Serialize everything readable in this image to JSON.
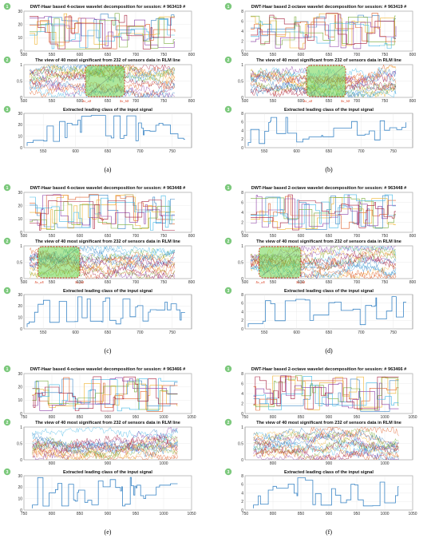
{
  "axis_tick_sets": {
    "top_ab": [
      500,
      550,
      600,
      650,
      700,
      750,
      800
    ],
    "bottom_ab": [
      550,
      600,
      650,
      700,
      750
    ],
    "cd": [
      500,
      550,
      600,
      650,
      700,
      750,
      800
    ],
    "cd_bottom": [
      550,
      600,
      650,
      700,
      750
    ],
    "ef": [
      750,
      800,
      850,
      900,
      950,
      1000,
      1050
    ]
  },
  "colors": {
    "grid": "#e6e6e6",
    "axis": "#4d4d4d",
    "signal": "#3b86c6",
    "highlight_fill": "#6cd44a",
    "highlight_border": "#cc3b1f",
    "badge": "#7dc97d",
    "marker_label": "#d9462a",
    "series": [
      "#3b86c6",
      "#e0622c",
      "#f0b431",
      "#8c3fa6",
      "#7aad3c",
      "#46b9e6",
      "#a8203f"
    ]
  },
  "chart_data": [
    {
      "panel": "a",
      "caption": "(a)",
      "type": "line",
      "subplots": [
        {
          "badge": "1",
          "title": "DWT-Haar based 4-octave wavelet decomposition for session: # 963419 #",
          "xlim": [
            500,
            800
          ],
          "ylim": [
            0,
            30
          ],
          "yticks": [
            0,
            10,
            20,
            30
          ],
          "xticks": [
            500,
            550,
            600,
            650,
            700,
            750,
            800
          ],
          "xdata": [
            510,
            770
          ]
        },
        {
          "badge": "2",
          "title": "The view of 40 most significant from 232 of sensors data in RLM line",
          "xlim": [
            500,
            800
          ],
          "ylim": [
            0,
            1
          ],
          "yticks": [
            0,
            0.5,
            1
          ],
          "xticks": [
            500,
            550,
            600,
            650,
            700,
            750,
            800
          ],
          "xdata": [
            510,
            770
          ],
          "highlight": {
            "x_from": 610,
            "x_to": 680
          },
          "markers": [
            "$x_a$",
            "$x_b$"
          ]
        },
        {
          "badge": "3",
          "title": "Extracted leading class of the input signal",
          "xlim": [
            520,
            780
          ],
          "ylim": [
            0,
            30
          ],
          "yticks": [
            0,
            10,
            20,
            30
          ],
          "xticks": [
            550,
            600,
            650,
            700,
            750
          ],
          "xdata": [
            525,
            770
          ]
        }
      ]
    },
    {
      "panel": "b",
      "caption": "(b)",
      "type": "line",
      "subplots": [
        {
          "badge": "1",
          "title": "DWT-Haar based 2-octave wavelet decomposition for session: # 963419 #",
          "xlim": [
            500,
            800
          ],
          "ylim": [
            0,
            8
          ],
          "yticks": [
            0,
            2,
            4,
            6,
            8
          ],
          "xticks": [
            500,
            550,
            600,
            650,
            700,
            750,
            800
          ],
          "xdata": [
            510,
            770
          ]
        },
        {
          "badge": "2",
          "title": "The view of 40 most significant from 232 of sensors data in RLM line",
          "xlim": [
            500,
            800
          ],
          "ylim": [
            0,
            1
          ],
          "yticks": [
            0,
            0.5,
            1
          ],
          "xticks": [
            500,
            550,
            600,
            650,
            700,
            750,
            800
          ],
          "xdata": [
            510,
            770
          ],
          "highlight": {
            "x_from": 610,
            "x_to": 680
          },
          "markers": [
            "$x_a$",
            "$x_b$"
          ]
        },
        {
          "badge": "3",
          "title": "Extracted leading class of the input signal",
          "xlim": [
            520,
            780
          ],
          "ylim": [
            0,
            8
          ],
          "yticks": [
            0,
            2,
            4,
            6,
            8
          ],
          "xticks": [
            550,
            600,
            650,
            700,
            750
          ],
          "xdata": [
            525,
            770
          ]
        }
      ]
    },
    {
      "panel": "c",
      "caption": "(c)",
      "type": "line",
      "subplots": [
        {
          "badge": "1",
          "title": "DWT-Haar based 4-octave wavelet decomposition for session: # 963448 #",
          "xlim": [
            500,
            800
          ],
          "ylim": [
            0,
            30
          ],
          "yticks": [
            0,
            10,
            20,
            30
          ],
          "xticks": [
            500,
            550,
            600,
            650,
            700,
            750,
            800
          ],
          "xdata": [
            510,
            770
          ]
        },
        {
          "badge": "2",
          "title": "The view of 40 most significant from 232 of sensors data in RLM line",
          "xlim": [
            500,
            800
          ],
          "ylim": [
            0,
            1
          ],
          "yticks": [
            0,
            0.5,
            1
          ],
          "xticks": [
            500,
            550,
            600,
            650,
            700,
            750,
            800
          ],
          "xdata": [
            510,
            770
          ],
          "highlight": {
            "x_from": 525,
            "x_to": 600
          },
          "markers": [
            "$x_a$",
            "$x_b$"
          ]
        },
        {
          "badge": "3",
          "title": "Extracted leading class of the input signal",
          "xlim": [
            520,
            780
          ],
          "ylim": [
            0,
            30
          ],
          "yticks": [
            0,
            10,
            20,
            30
          ],
          "xticks": [
            550,
            600,
            650,
            700,
            750
          ],
          "xdata": [
            525,
            770
          ]
        }
      ]
    },
    {
      "panel": "d",
      "caption": "(d)",
      "type": "line",
      "subplots": [
        {
          "badge": "1",
          "title": "DWT-Haar based 2-octave wavelet decomposition for session: # 963448 #",
          "xlim": [
            500,
            800
          ],
          "ylim": [
            0,
            8
          ],
          "yticks": [
            0,
            2,
            4,
            6,
            8
          ],
          "xticks": [
            500,
            550,
            600,
            650,
            700,
            750,
            800
          ],
          "xdata": [
            510,
            770
          ]
        },
        {
          "badge": "2",
          "title": "The view of 40 most significant from 232 of sensors data in RLM line",
          "xlim": [
            500,
            800
          ],
          "ylim": [
            0,
            1
          ],
          "yticks": [
            0,
            0.5,
            1
          ],
          "xticks": [
            500,
            550,
            600,
            650,
            700,
            750,
            800
          ],
          "xdata": [
            510,
            770
          ],
          "highlight": {
            "x_from": 525,
            "x_to": 600
          },
          "markers": [
            "$x_a$",
            "$x_b$"
          ]
        },
        {
          "badge": "3",
          "title": "Extracted leading class of the input signal",
          "xlim": [
            520,
            780
          ],
          "ylim": [
            0,
            8
          ],
          "yticks": [
            0,
            2,
            4,
            6,
            8
          ],
          "xticks": [
            550,
            600,
            650,
            700,
            750
          ],
          "xdata": [
            525,
            770
          ]
        }
      ]
    },
    {
      "panel": "e",
      "caption": "(e)",
      "type": "line",
      "subplots": [
        {
          "badge": "1",
          "title": "DWT-Haar based 4-octave wavelet decomposition for session: # 963466 #",
          "xlim": [
            750,
            1050
          ],
          "ylim": [
            0,
            30
          ],
          "yticks": [
            0,
            10,
            20,
            30
          ],
          "xticks": [
            750,
            800,
            850,
            900,
            950,
            1000,
            1050
          ],
          "xdata": [
            765,
            1025
          ]
        },
        {
          "badge": "2",
          "title": "The view of 40 most significant from 232 of sensors data in RLM line",
          "xlim": [
            750,
            1050
          ],
          "ylim": [
            0,
            1
          ],
          "yticks": [
            0,
            0.5,
            1
          ],
          "xticks": [
            800,
            900,
            1000
          ],
          "xdata": [
            765,
            1025
          ]
        },
        {
          "badge": "3",
          "title": "Extracted leading class of the input signal",
          "xlim": [
            750,
            1050
          ],
          "ylim": [
            0,
            30
          ],
          "yticks": [
            0,
            10,
            20,
            30
          ],
          "xticks": [
            750,
            800,
            850,
            900,
            950,
            1000,
            1050
          ],
          "xdata": [
            765,
            1025
          ]
        }
      ]
    },
    {
      "panel": "f",
      "caption": "(f)",
      "type": "line",
      "subplots": [
        {
          "badge": "1",
          "title": "DWT-Haar based 2-octave wavelet decomposition for session: # 963466 #",
          "xlim": [
            750,
            1050
          ],
          "ylim": [
            0,
            8
          ],
          "yticks": [
            0,
            2,
            4,
            6,
            8
          ],
          "xticks": [
            750,
            800,
            850,
            900,
            950,
            1000,
            1050
          ],
          "xdata": [
            765,
            1025
          ]
        },
        {
          "badge": "2",
          "title": "The view of 40 most significant from 232 of sensors data in RLM line",
          "xlim": [
            750,
            1050
          ],
          "ylim": [
            0,
            1
          ],
          "yticks": [
            0,
            0.5,
            1
          ],
          "xticks": [
            800,
            900,
            1000
          ],
          "xdata": [
            765,
            1025
          ]
        },
        {
          "badge": "3",
          "title": "Extracted leading class of the input signal",
          "xlim": [
            750,
            1050
          ],
          "ylim": [
            0,
            8
          ],
          "yticks": [
            0,
            2,
            4,
            6,
            8
          ],
          "xticks": [
            750,
            800,
            850,
            900,
            950,
            1000,
            1050
          ],
          "xdata": [
            765,
            1025
          ]
        }
      ]
    }
  ]
}
